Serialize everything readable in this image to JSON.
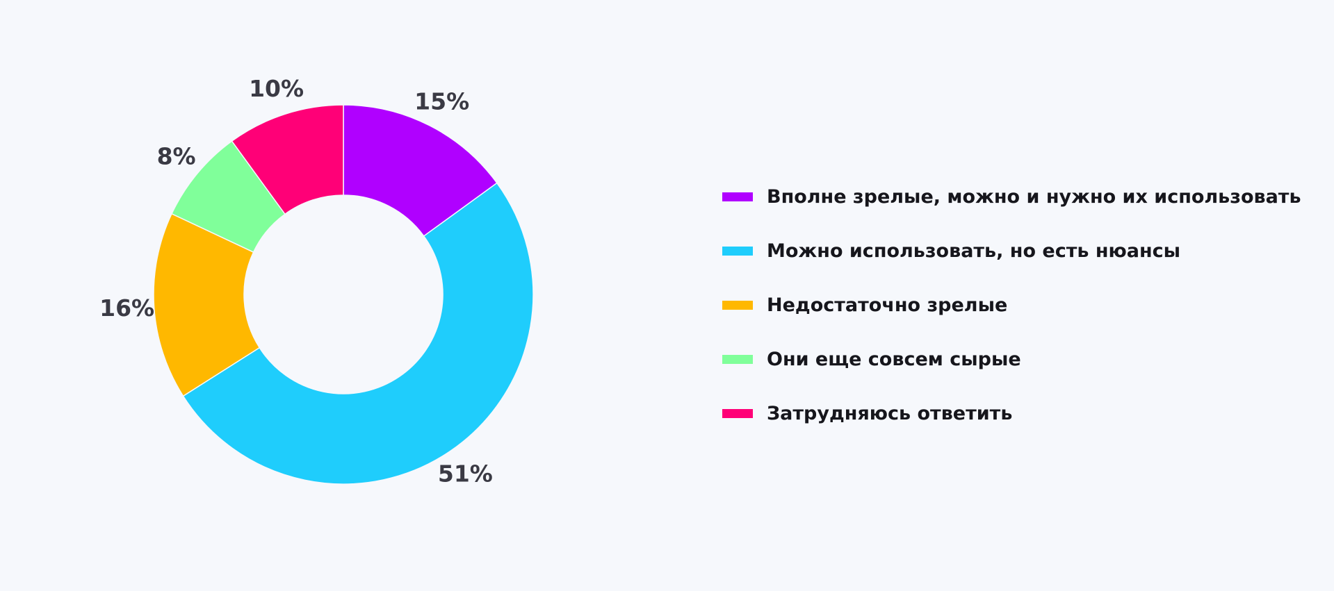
{
  "chart_data": {
    "type": "pie",
    "variant": "donut",
    "title": "",
    "categories": [
      "Вполне зрелые, можно и нужно их использовать",
      "Можно использовать, но есть нюансы",
      "Недостаточно зрелые",
      "Они еще совсем сырые",
      "Затрудняюсь ответить"
    ],
    "values": [
      15,
      51,
      16,
      8,
      10
    ],
    "value_labels": [
      "15%",
      "51%",
      "16%",
      "8%",
      "10%"
    ],
    "colors": [
      "#b000ff",
      "#1fcdfc",
      "#ffb800",
      "#80ff9a",
      "#ff0077"
    ],
    "start_angle_deg": 0,
    "direction": "clockwise",
    "legend_position": "right"
  }
}
